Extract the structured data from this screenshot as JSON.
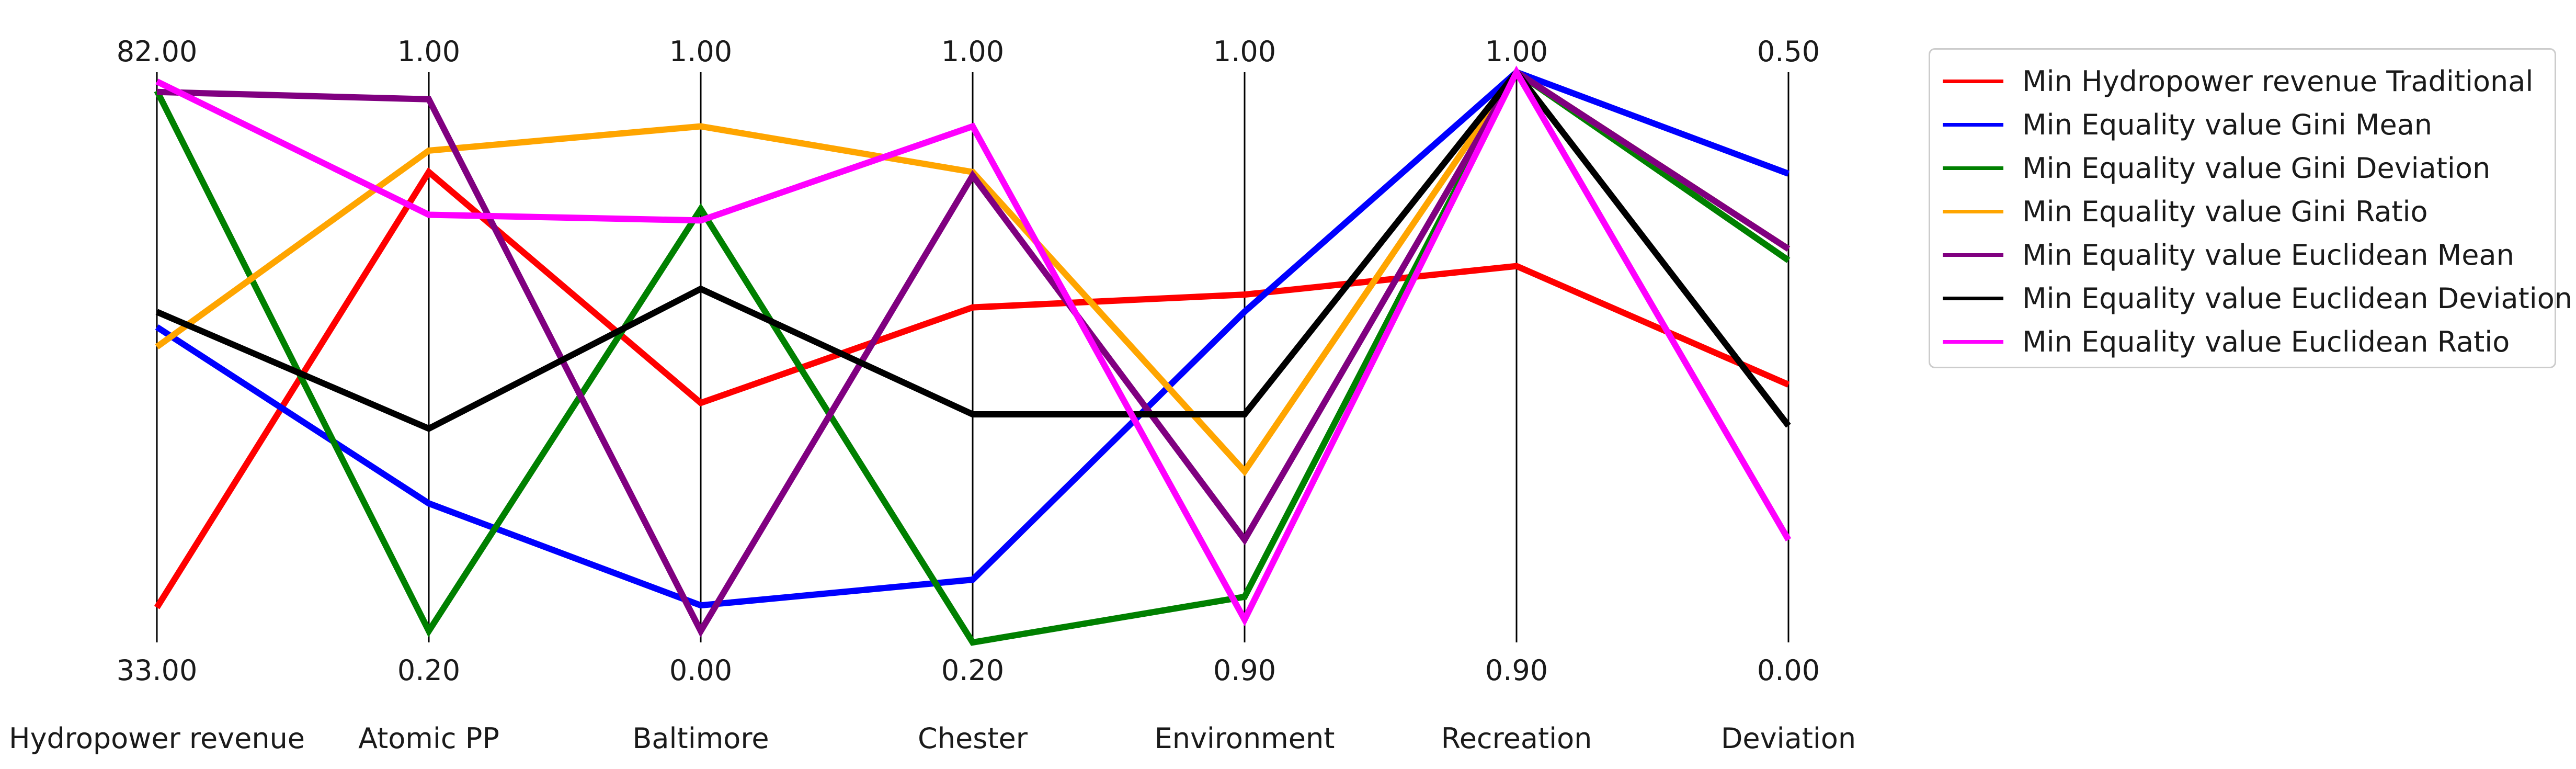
{
  "chart_data": {
    "type": "parallel-coordinates",
    "axes": [
      {
        "label": "Hydropower revenue",
        "max_label": "82.00",
        "min_label": "33.00",
        "max": 82.0,
        "min": 33.0
      },
      {
        "label": "Atomic PP",
        "max_label": "1.00",
        "min_label": "0.20",
        "max": 1.0,
        "min": 0.2
      },
      {
        "label": "Baltimore",
        "max_label": "1.00",
        "min_label": "0.00",
        "max": 1.0,
        "min": 0.0
      },
      {
        "label": "Chester",
        "max_label": "1.00",
        "min_label": "0.20",
        "max": 1.0,
        "min": 0.2
      },
      {
        "label": "Environment",
        "max_label": "1.00",
        "min_label": "0.90",
        "max": 1.0,
        "min": 0.9
      },
      {
        "label": "Recreation",
        "max_label": "1.00",
        "min_label": "0.90",
        "max": 1.0,
        "min": 0.9
      },
      {
        "label": "Deviation",
        "max_label": "0.50",
        "min_label": "0.00",
        "max": 0.5,
        "min": 0.0
      }
    ],
    "series": [
      {
        "name": "Min Hydropower revenue Traditional",
        "color": "#ff0000",
        "values": [
          36.0,
          0.86,
          0.42,
          0.67,
          0.961,
          0.966,
          0.226
        ]
      },
      {
        "name": "Min Equality value Gini Mean",
        "color": "#0000ff",
        "values": [
          60.1,
          0.395,
          0.065,
          0.288,
          0.958,
          1.0,
          0.411
        ]
      },
      {
        "name": "Min Equality value Gini Deviation",
        "color": "#008000",
        "values": [
          80.4,
          0.216,
          0.76,
          0.2,
          0.908,
          1.0,
          0.335
        ]
      },
      {
        "name": "Min Equality value Gini Ratio",
        "color": "#ffa500",
        "values": [
          58.4,
          0.89,
          0.905,
          0.86,
          0.93,
          1.0,
          0.345
        ]
      },
      {
        "name": "Min Equality value Euclidean Mean",
        "color": "#800080",
        "values": [
          80.3,
          0.962,
          0.02,
          0.855,
          0.918,
          1.0,
          0.345
        ]
      },
      {
        "name": "Min Equality value Euclidean Deviation",
        "color": "#000000",
        "values": [
          61.4,
          0.5,
          0.62,
          0.52,
          0.94,
          1.0,
          0.19
        ]
      },
      {
        "name": "Min Equality value Euclidean Ratio",
        "color": "#ff00ff",
        "values": [
          81.2,
          0.8,
          0.74,
          0.924,
          0.904,
          1.0,
          0.09
        ]
      }
    ],
    "legend_position": "top-right",
    "grid": false
  }
}
